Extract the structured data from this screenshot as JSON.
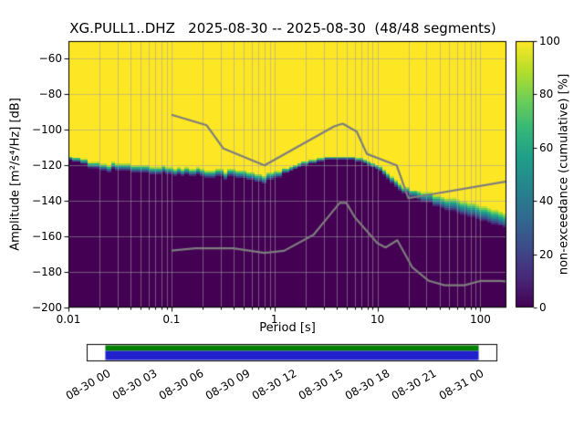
{
  "chart_data": {
    "type": "heatmap",
    "subtype": "ppsd-probabilistic-power-spectral-density",
    "title": "XG.PULL1..DHZ   2025-08-30 -- 2025-08-30  (48/48 segments)",
    "station_id": "XG.PULL1..DHZ",
    "date_range": "2025-08-30 -- 2025-08-30",
    "segments": "48/48",
    "xlabel": "Period [s]",
    "ylabel": "Amplitude [m²/s⁴/Hz] [dB]",
    "xscale": "log",
    "xlim": [
      0.01,
      179
    ],
    "ylim": [
      -200,
      -50
    ],
    "grid": true,
    "xticks": {
      "values": [
        0.01,
        0.1,
        1,
        10,
        100
      ],
      "labels": [
        "0.01",
        "0.1",
        "1",
        "10",
        "100"
      ]
    },
    "yticks": {
      "values": [
        -60,
        -80,
        -100,
        -120,
        -140,
        -160,
        -180,
        -200
      ],
      "labels": [
        "−60",
        "−80",
        "−100",
        "−120",
        "−140",
        "−160",
        "−180",
        "−200"
      ]
    },
    "colorbar": {
      "label": "non-exceedance (cumulative) [%]",
      "ticks": {
        "values": [
          0,
          20,
          40,
          60,
          80,
          100
        ],
        "labels": [
          "0",
          "20",
          "40",
          "60",
          "80",
          "100"
        ]
      },
      "colormap": "viridis"
    },
    "distribution": {
      "periods": [
        0.01,
        0.013,
        0.017,
        0.022,
        0.03,
        0.045,
        0.065,
        0.09,
        0.13,
        0.19,
        0.28,
        0.4,
        0.55,
        0.75,
        0.95,
        1.3,
        1.8,
        2.5,
        3.5,
        4.5,
        6.0,
        8.0,
        10.0,
        12.0,
        15.0,
        18.0,
        22.0,
        30.0,
        42.0,
        60.0,
        85.0,
        120.0,
        179.0
      ],
      "median_db": [
        -115,
        -118,
        -120,
        -120.5,
        -121,
        -122,
        -122.5,
        -122.5,
        -123.5,
        -124,
        -124.5,
        -124.5,
        -125.5,
        -127.5,
        -125.5,
        -123,
        -120,
        -117.5,
        -116,
        -115.5,
        -116.5,
        -118.5,
        -121,
        -124,
        -130,
        -133.5,
        -135.5,
        -138,
        -140.5,
        -143,
        -145.5,
        -148,
        -151
      ],
      "halfwidth_db": [
        1.2,
        1.5,
        1.8,
        2.0,
        2.0,
        2.2,
        2.2,
        2.0,
        2.0,
        2.0,
        2.2,
        2.2,
        2.5,
        2.5,
        2.2,
        1.5,
        1.2,
        1.0,
        1.0,
        1.0,
        1.0,
        1.2,
        1.5,
        1.8,
        2.0,
        2.2,
        2.5,
        3.0,
        3.5,
        4.0,
        4.3,
        4.5,
        4.5
      ]
    },
    "noise_models": {
      "high": {
        "periods": [
          0.1,
          0.22,
          0.32,
          0.8,
          3.8,
          4.6,
          6.3,
          7.9,
          15.4,
          20.0,
          179.0
        ],
        "db": [
          -91.5,
          -97.4,
          -110.5,
          -120.0,
          -98.0,
          -96.5,
          -101.0,
          -113.5,
          -120.0,
          -138.5,
          -129.0
        ]
      },
      "low": {
        "periods": [
          0.1,
          0.17,
          0.4,
          0.8,
          1.24,
          2.4,
          4.3,
          5.0,
          6.0,
          10.0,
          12.0,
          15.6,
          21.9,
          31.6,
          45.0,
          70.0,
          101.0,
          154.0,
          179.0
        ],
        "db": [
          -168.0,
          -166.7,
          -166.7,
          -169.2,
          -168.1,
          -159.0,
          -141.1,
          -141.1,
          -149.0,
          -163.8,
          -166.2,
          -162.1,
          -177.5,
          -185.0,
          -187.5,
          -187.5,
          -185.0,
          -185.0,
          -185.3
        ]
      }
    },
    "colors": {
      "background": "#ffffff",
      "grid": "#b0b0b0",
      "noise_model_line": "#7d7d7d",
      "cmap_low": "#440154",
      "cmap_high": "#fde725"
    }
  },
  "timeline": {
    "tick_labels": [
      "08-30 00",
      "08-30 03",
      "08-30 06",
      "08-30 09",
      "08-30 12",
      "08-30 15",
      "08-30 18",
      "08-30 21",
      "08-31 00"
    ],
    "range_hours": 24,
    "coverage": {
      "start_hour": 0,
      "end_hour": 24,
      "top_color": "#008000",
      "bottom_color": "#2020cc"
    }
  }
}
